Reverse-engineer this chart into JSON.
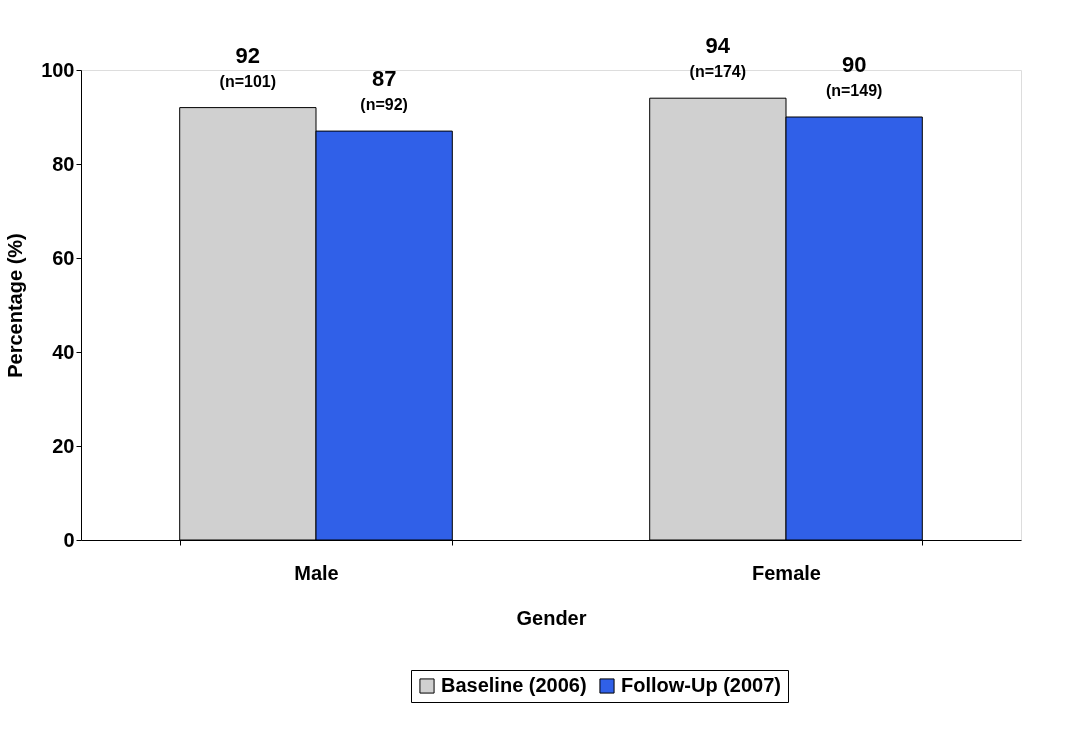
{
  "chart_data": {
    "type": "bar",
    "xlabel": "Gender",
    "ylabel": "Percentage (%)",
    "categories": [
      "Male",
      "Female"
    ],
    "series": [
      {
        "name": "Baseline (2006)",
        "color": "#d0d0d0",
        "values": [
          92,
          94
        ],
        "value_labels": [
          "92\n(n=101)",
          "94\n(n=174)"
        ]
      },
      {
        "name": "Follow-Up (2007)",
        "color": "#3060e8",
        "values": [
          87,
          90
        ],
        "value_labels": [
          "87\n(n=92)",
          "90\n(n=149)"
        ]
      }
    ],
    "ylim": [
      0,
      100
    ],
    "yticks": [
      0,
      20,
      40,
      60,
      80,
      100
    ],
    "grid": false,
    "legend": "bottom"
  }
}
